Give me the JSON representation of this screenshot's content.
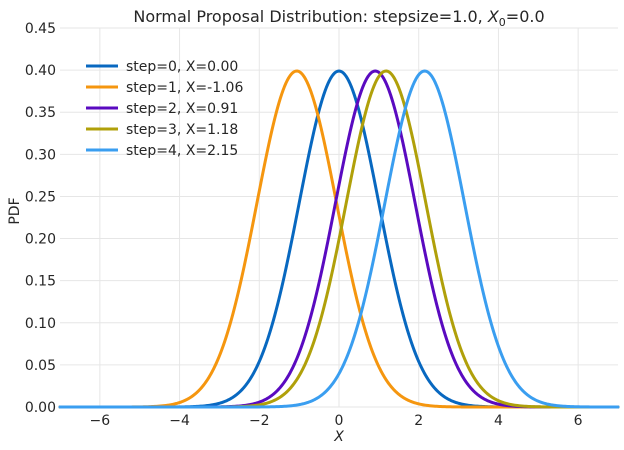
{
  "chart_data": {
    "type": "line",
    "title": "Normal Proposal Distribution: stepsize=1.0, X₀=0.0",
    "title_parts": {
      "prefix": "Normal Proposal Distribution: stepsize=1.0, ",
      "var": "X",
      "sub": "0",
      "suffix": "=0.0"
    },
    "xlabel": "X",
    "ylabel": "PDF",
    "xlim": [
      -7,
      7
    ],
    "ylim": [
      0,
      0.45
    ],
    "xticks": [
      -6,
      -4,
      -2,
      0,
      2,
      4,
      6
    ],
    "yticks": [
      0.0,
      0.05,
      0.1,
      0.15,
      0.2,
      0.25,
      0.3,
      0.35,
      0.4,
      0.45
    ],
    "xtick_labels": [
      "−6",
      "−4",
      "−2",
      "0",
      "2",
      "4",
      "6"
    ],
    "ytick_labels": [
      "0.00",
      "0.05",
      "0.10",
      "0.15",
      "0.20",
      "0.25",
      "0.30",
      "0.35",
      "0.40",
      "0.45"
    ],
    "grid": true,
    "legend_position": "top-left",
    "stepsize": 1.0,
    "series": [
      {
        "name": "step=0, X=0.00",
        "mean": 0.0,
        "color": "#0868c0"
      },
      {
        "name": "step=1, X=-1.06",
        "mean": -1.06,
        "color": "#f5960f"
      },
      {
        "name": "step=2, X=0.91",
        "mean": 0.91,
        "color": "#5a0ac0"
      },
      {
        "name": "step=3, X=1.18",
        "mean": 1.18,
        "color": "#b0a00a"
      },
      {
        "name": "step=4, X=2.15",
        "mean": 2.15,
        "color": "#3a9ef0"
      }
    ]
  }
}
